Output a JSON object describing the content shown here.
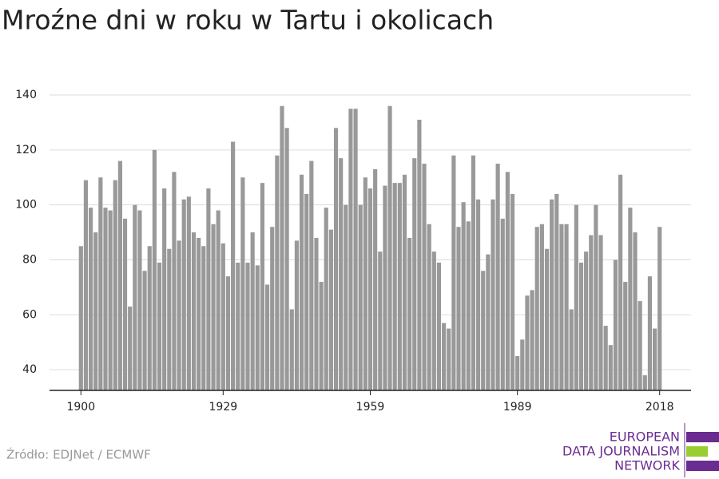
{
  "chart_data": {
    "type": "bar",
    "title": "Mroźne dni w roku w Tartu i okolicach",
    "x": [
      1900,
      1901,
      1902,
      1903,
      1904,
      1905,
      1906,
      1907,
      1908,
      1909,
      1910,
      1911,
      1912,
      1913,
      1914,
      1915,
      1916,
      1917,
      1918,
      1919,
      1920,
      1921,
      1922,
      1923,
      1924,
      1925,
      1926,
      1927,
      1928,
      1929,
      1930,
      1931,
      1932,
      1933,
      1934,
      1935,
      1936,
      1937,
      1938,
      1939,
      1940,
      1941,
      1942,
      1943,
      1944,
      1945,
      1946,
      1947,
      1948,
      1949,
      1950,
      1951,
      1952,
      1953,
      1954,
      1955,
      1956,
      1957,
      1958,
      1959,
      1960,
      1961,
      1962,
      1963,
      1964,
      1965,
      1966,
      1967,
      1968,
      1969,
      1970,
      1971,
      1972,
      1973,
      1974,
      1975,
      1976,
      1977,
      1978,
      1979,
      1980,
      1981,
      1982,
      1983,
      1984,
      1985,
      1986,
      1987,
      1988,
      1989,
      1990,
      1991,
      1992,
      1993,
      1994,
      1995,
      1996,
      1997,
      1998,
      1999,
      2000,
      2001,
      2002,
      2003,
      2004,
      2005,
      2006,
      2007,
      2008,
      2009,
      2010,
      2011,
      2012,
      2013,
      2014,
      2015,
      2016,
      2017,
      2018
    ],
    "values": [
      85,
      109,
      99,
      90,
      110,
      99,
      98,
      109,
      116,
      95,
      63,
      100,
      98,
      76,
      85,
      120,
      79,
      106,
      84,
      112,
      87,
      102,
      103,
      90,
      88,
      85,
      106,
      93,
      98,
      86,
      74,
      123,
      79,
      110,
      79,
      90,
      78,
      108,
      71,
      92,
      118,
      136,
      128,
      62,
      87,
      111,
      104,
      116,
      88,
      72,
      99,
      91,
      128,
      117,
      100,
      135,
      135,
      100,
      110,
      106,
      113,
      83,
      107,
      136,
      108,
      108,
      111,
      88,
      117,
      131,
      115,
      93,
      83,
      79,
      57,
      55,
      118,
      92,
      101,
      94,
      118,
      102,
      76,
      82,
      102,
      115,
      95,
      112,
      104,
      45,
      51,
      67,
      69,
      92,
      93,
      84,
      102,
      104,
      93,
      93,
      62,
      100,
      79,
      83,
      89,
      100,
      89,
      56,
      49,
      80,
      111,
      72,
      99,
      90,
      65,
      38,
      74,
      55,
      92
    ],
    "color": "#999999",
    "xlim": [
      1893.6,
      2024.4
    ],
    "xticks": [
      1900,
      1929,
      1959,
      1989,
      2018
    ],
    "ylim": [
      32.5,
      140
    ],
    "yticks": [
      40,
      60,
      80,
      100,
      120,
      140
    ],
    "grid": true,
    "source": "Źródło: EDJNet / ECMWF",
    "logo": [
      "EUROPEAN",
      "DATA JOURNALISM",
      "NETWORK"
    ]
  }
}
